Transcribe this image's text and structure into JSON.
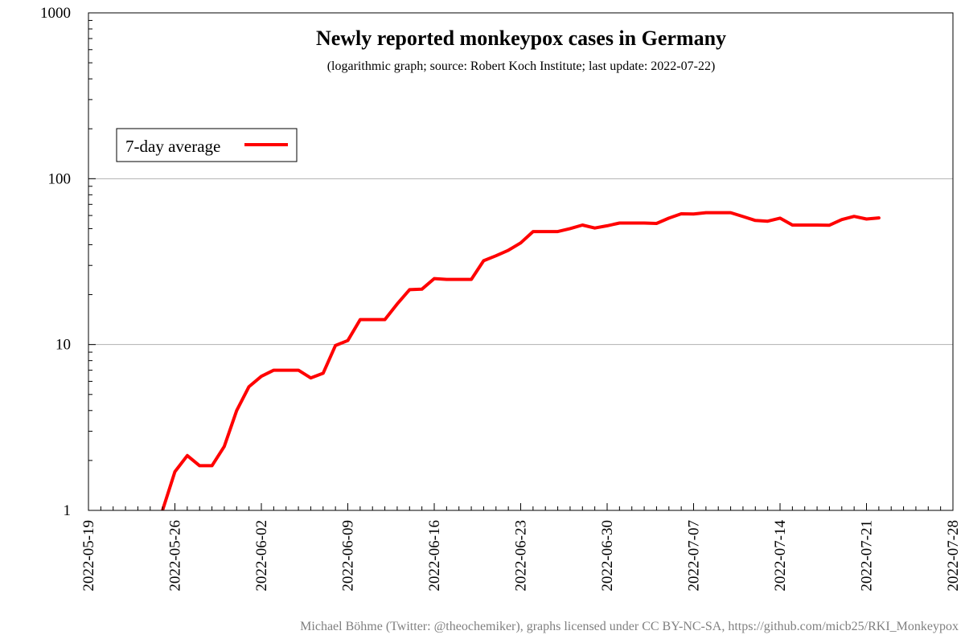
{
  "chart_data": {
    "type": "line",
    "title": "Newly reported monkeypox cases in Germany",
    "subtitle": "(logarithmic graph; source: Robert Koch Institute; last update: 2022-07-22)",
    "xlabel": "",
    "ylabel": "",
    "yscale": "log",
    "ylim": [
      1,
      1000
    ],
    "xlim": [
      "2022-05-19",
      "2022-07-28"
    ],
    "y_ticks": [
      "1",
      "10",
      "100",
      "1000"
    ],
    "x_ticks": [
      "2022-05-19",
      "2022-05-26",
      "2022-06-02",
      "2022-06-09",
      "2022-06-16",
      "2022-06-23",
      "2022-06-30",
      "2022-07-07",
      "2022-07-14",
      "2022-07-21",
      "2022-07-28"
    ],
    "grid": "horizontal at major y ticks",
    "legend_position": "top-left",
    "colors": {
      "line": "#ff0000",
      "grid": "#b0b0b0",
      "credit": "#808080"
    },
    "series": [
      {
        "name": "7-day average",
        "x": [
          "2022-05-25",
          "2022-05-26",
          "2022-05-27",
          "2022-05-28",
          "2022-05-29",
          "2022-05-30",
          "2022-05-31",
          "2022-06-01",
          "2022-06-02",
          "2022-06-03",
          "2022-06-04",
          "2022-06-05",
          "2022-06-06",
          "2022-06-07",
          "2022-06-08",
          "2022-06-09",
          "2022-06-10",
          "2022-06-11",
          "2022-06-12",
          "2022-06-13",
          "2022-06-14",
          "2022-06-15",
          "2022-06-16",
          "2022-06-17",
          "2022-06-18",
          "2022-06-19",
          "2022-06-20",
          "2022-06-21",
          "2022-06-22",
          "2022-06-23",
          "2022-06-24",
          "2022-06-25",
          "2022-06-26",
          "2022-06-27",
          "2022-06-28",
          "2022-06-29",
          "2022-06-30",
          "2022-07-01",
          "2022-07-02",
          "2022-07-03",
          "2022-07-04",
          "2022-07-05",
          "2022-07-06",
          "2022-07-07",
          "2022-07-08",
          "2022-07-09",
          "2022-07-10",
          "2022-07-11",
          "2022-07-12",
          "2022-07-13",
          "2022-07-14",
          "2022-07-15",
          "2022-07-16",
          "2022-07-17",
          "2022-07-18",
          "2022-07-19",
          "2022-07-20",
          "2022-07-21",
          "2022-07-22"
        ],
        "values": [
          1.0,
          1.71,
          2.14,
          1.86,
          1.86,
          2.43,
          4.0,
          5.57,
          6.43,
          7.0,
          7.0,
          7.0,
          6.29,
          6.71,
          9.86,
          10.57,
          14.14,
          14.14,
          14.14,
          17.57,
          21.43,
          21.57,
          25.0,
          24.71,
          24.71,
          24.71,
          32.0,
          34.29,
          37.0,
          41.0,
          48.0,
          48.0,
          48.0,
          50.0,
          52.57,
          50.43,
          52.0,
          54.0,
          54.0,
          54.0,
          53.71,
          57.86,
          61.43,
          61.29,
          62.43,
          62.43,
          62.43,
          59.14,
          56.0,
          55.43,
          57.86,
          52.57,
          52.57,
          52.57,
          52.43,
          56.71,
          59.29,
          57.14,
          58.0
        ]
      }
    ]
  },
  "legend": {
    "label": "7-day average"
  },
  "credit": "Michael Böhme (Twitter: @theochemiker), graphs licensed under CC BY-NC-SA, https://github.com/micb25/RKI_Monkeypox"
}
